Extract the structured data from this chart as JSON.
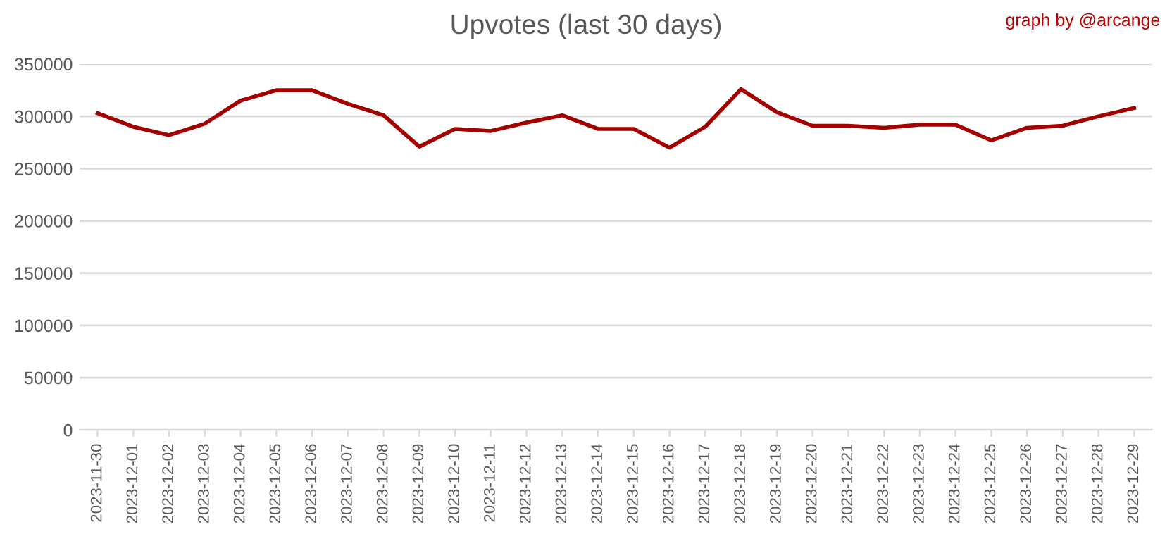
{
  "chart_data": {
    "type": "line",
    "title": "Upvotes (last 30 days)",
    "annotations": [
      "graph by @arcange"
    ],
    "categories": [
      "2023-11-30",
      "2023-12-01",
      "2023-12-02",
      "2023-12-03",
      "2023-12-04",
      "2023-12-05",
      "2023-12-06",
      "2023-12-07",
      "2023-12-08",
      "2023-12-09",
      "2023-12-10",
      "2023-12-11",
      "2023-12-12",
      "2023-12-13",
      "2023-12-14",
      "2023-12-15",
      "2023-12-16",
      "2023-12-17",
      "2023-12-18",
      "2023-12-19",
      "2023-12-20",
      "2023-12-21",
      "2023-12-22",
      "2023-12-23",
      "2023-12-24",
      "2023-12-25",
      "2023-12-26",
      "2023-12-27",
      "2023-12-28",
      "2023-12-29"
    ],
    "series": [
      {
        "color": "#a50000",
        "values": [
          303000,
          290000,
          282000,
          293000,
          315000,
          325000,
          325000,
          312000,
          301000,
          271000,
          288000,
          286000,
          294000,
          301000,
          288000,
          288000,
          270000,
          290000,
          326000,
          304000,
          291000,
          291000,
          289000,
          292000,
          292000,
          277000,
          289000,
          291000,
          300000,
          308000
        ]
      }
    ],
    "ylim": [
      0,
      350000
    ],
    "yticks": [
      0,
      50000,
      100000,
      150000,
      200000,
      250000,
      300000,
      350000
    ],
    "grid": "y",
    "marker": "none",
    "line_style": "solid"
  }
}
